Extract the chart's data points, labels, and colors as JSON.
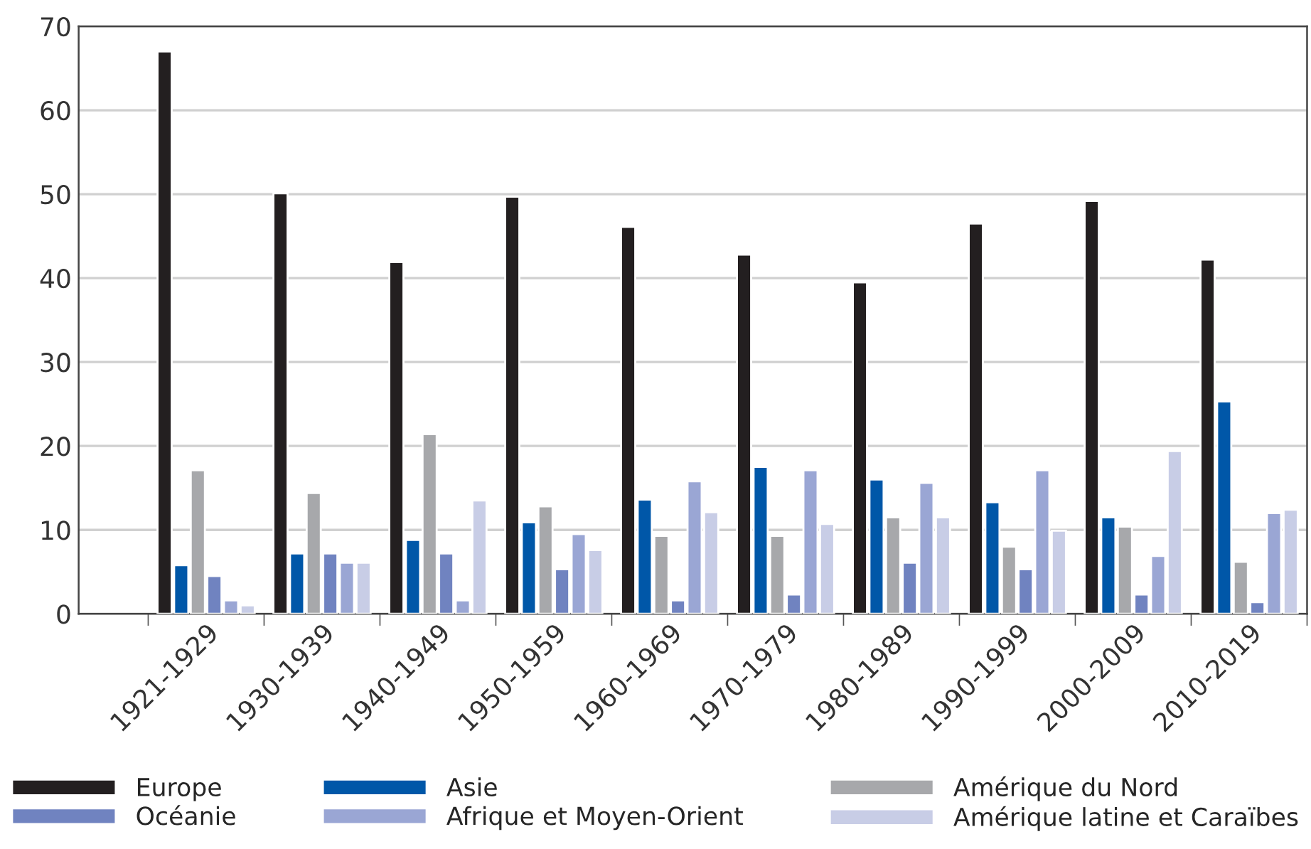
{
  "chart_data": {
    "type": "bar",
    "categories": [
      "1921-1929",
      "1930-1939",
      "1940-1949",
      "1950-1959",
      "1960-1969",
      "1970-1979",
      "1980-1989",
      "1990-1999",
      "2000-2009",
      "2010-2019"
    ],
    "series": [
      {
        "name": "Europe",
        "color": "#231f20",
        "values": [
          67,
          50.1,
          41.9,
          49.7,
          46.1,
          42.8,
          39.5,
          46.5,
          49.2,
          42.2
        ]
      },
      {
        "name": "Asie",
        "color": "#0057a8",
        "values": [
          5.8,
          7.2,
          8.8,
          10.9,
          13.6,
          17.5,
          16.0,
          13.3,
          11.5,
          25.3
        ]
      },
      {
        "name": "Amérique du Nord",
        "color": "#a7a8ab",
        "values": [
          17.1,
          14.4,
          21.4,
          12.8,
          9.3,
          9.3,
          11.5,
          8.0,
          10.4,
          6.2
        ]
      },
      {
        "name": "Océanie",
        "color": "#7083c0",
        "values": [
          4.5,
          7.2,
          7.2,
          5.3,
          1.6,
          2.3,
          6.1,
          5.3,
          2.3,
          1.4
        ]
      },
      {
        "name": "Afrique et Moyen-Orient",
        "color": "#9aa6d4",
        "values": [
          1.6,
          6.1,
          1.6,
          9.5,
          15.8,
          17.1,
          15.6,
          17.1,
          6.9,
          12.0
        ]
      },
      {
        "name": "Amérique latine et Caraïbes",
        "color": "#c8cde6",
        "values": [
          1.0,
          6.1,
          13.5,
          7.6,
          12.1,
          10.7,
          11.5,
          9.9,
          19.4,
          12.4
        ]
      }
    ],
    "ylim": [
      0,
      70
    ],
    "yticks": [
      0,
      10,
      20,
      30,
      40,
      50,
      60,
      70
    ],
    "grid": "y",
    "legend": "bottom"
  }
}
